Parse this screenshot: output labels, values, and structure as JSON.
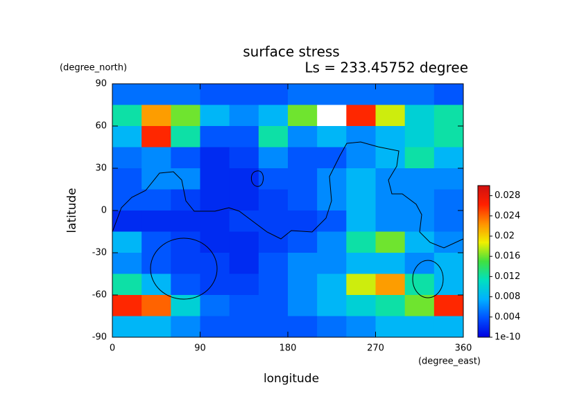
{
  "chart_data": {
    "type": "heatmap",
    "title": "surface stress",
    "subtitle": "Ls = 233.45752 degree",
    "xlabel": "longitude",
    "ylabel": "latitude",
    "xunit": "(degree_east)",
    "yunit": "(degree_north)",
    "x": [
      15,
      45,
      75,
      105,
      135,
      165,
      195,
      225,
      255,
      285,
      315,
      345
    ],
    "y": [
      82.5,
      67.5,
      52.5,
      37.5,
      22.5,
      7.5,
      -7.5,
      -22.5,
      -37.5,
      -52.5,
      -67.5,
      -82.5
    ],
    "z": [
      [
        0.005,
        0.005,
        0.005,
        0.004,
        0.004,
        0.004,
        0.005,
        0.005,
        0.005,
        0.005,
        0.005,
        0.004
      ],
      [
        0.012,
        0.022,
        0.016,
        0.008,
        0.006,
        0.008,
        0.016,
        0.03,
        0.026,
        0.018,
        0.01,
        0.012
      ],
      [
        0.008,
        0.026,
        0.012,
        0.004,
        0.004,
        0.012,
        0.006,
        0.008,
        0.006,
        0.008,
        0.01,
        0.012
      ],
      [
        0.005,
        0.006,
        0.004,
        0.002,
        0.003,
        0.006,
        0.004,
        0.004,
        0.006,
        0.008,
        0.012,
        0.008
      ],
      [
        0.004,
        0.006,
        0.006,
        0.002,
        0.002,
        0.004,
        0.004,
        0.006,
        0.008,
        0.006,
        0.006,
        0.006
      ],
      [
        0.004,
        0.004,
        0.003,
        0.002,
        0.002,
        0.003,
        0.004,
        0.006,
        0.008,
        0.006,
        0.006,
        0.005
      ],
      [
        0.002,
        0.002,
        0.002,
        0.002,
        0.003,
        0.003,
        0.003,
        0.004,
        0.008,
        0.006,
        0.006,
        0.005
      ],
      [
        0.008,
        0.004,
        0.003,
        0.002,
        0.002,
        0.003,
        0.004,
        0.006,
        0.012,
        0.016,
        0.008,
        0.006
      ],
      [
        0.006,
        0.004,
        0.003,
        0.003,
        0.002,
        0.004,
        0.006,
        0.006,
        0.008,
        0.008,
        0.006,
        0.008
      ],
      [
        0.012,
        0.008,
        0.004,
        0.003,
        0.003,
        0.004,
        0.006,
        0.008,
        0.018,
        0.022,
        0.012,
        0.008
      ],
      [
        0.026,
        0.024,
        0.01,
        0.005,
        0.004,
        0.004,
        0.006,
        0.008,
        0.01,
        0.012,
        0.016,
        0.026
      ],
      [
        0.008,
        0.008,
        0.006,
        0.004,
        0.004,
        0.004,
        0.004,
        0.005,
        0.006,
        0.008,
        0.008,
        0.008
      ]
    ],
    "xlim": [
      0,
      360
    ],
    "xticks": [
      0,
      90,
      180,
      270,
      360
    ],
    "ylim": [
      -90,
      90
    ],
    "yticks": [
      90,
      60,
      30,
      0,
      -30,
      -60,
      -90
    ],
    "zlim": [
      0,
      0.03
    ],
    "zticks": [
      1e-10,
      0.004,
      0.008,
      0.012,
      0.016,
      0.02,
      0.024,
      0.028
    ],
    "colormap": [
      "#0000e0",
      "#0050ff",
      "#00b0ff",
      "#00e0c0",
      "#40e040",
      "#f0f000",
      "#ff9000",
      "#ff2000",
      "#d01010"
    ],
    "over_color": "#ffffff"
  }
}
